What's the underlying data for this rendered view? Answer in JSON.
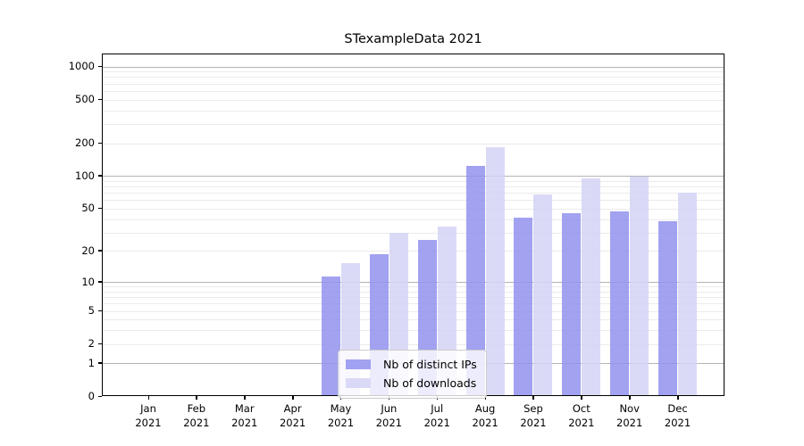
{
  "title": "STexampleData 2021",
  "colors": {
    "ips_bar": "#9292ee",
    "downloads_bar": "#d4d4f6",
    "major_grid": "#b4b4b4",
    "minor_grid": "#ebebeb",
    "axis": "#000000"
  },
  "legend": {
    "items": [
      {
        "label": "Nb of distinct IPs",
        "color": "#9292ee"
      },
      {
        "label": "Nb of downloads",
        "color": "#d4d4f6"
      }
    ]
  },
  "chart_data": {
    "type": "bar",
    "title": "STexampleData 2021",
    "categories": [
      {
        "month": "Jan",
        "year": "2021"
      },
      {
        "month": "Feb",
        "year": "2021"
      },
      {
        "month": "Mar",
        "year": "2021"
      },
      {
        "month": "Apr",
        "year": "2021"
      },
      {
        "month": "May",
        "year": "2021"
      },
      {
        "month": "Jun",
        "year": "2021"
      },
      {
        "month": "Jul",
        "year": "2021"
      },
      {
        "month": "Aug",
        "year": "2021"
      },
      {
        "month": "Sep",
        "year": "2021"
      },
      {
        "month": "Oct",
        "year": "2021"
      },
      {
        "month": "Nov",
        "year": "2021"
      },
      {
        "month": "Dec",
        "year": "2021"
      }
    ],
    "series": [
      {
        "name": "Nb of distinct IPs",
        "color": "#9292ee",
        "values": [
          0,
          0,
          0,
          0,
          11,
          18,
          25,
          120,
          40,
          44,
          46,
          37
        ]
      },
      {
        "name": "Nb of downloads",
        "color": "#d4d4f6",
        "values": [
          0,
          0,
          0,
          0,
          15,
          29,
          33,
          180,
          66,
          92,
          96,
          69
        ]
      }
    ],
    "y_scale": "log1p",
    "y_ticks": [
      0,
      1,
      2,
      5,
      10,
      20,
      50,
      100,
      200,
      500,
      1000
    ],
    "y_max": 1300,
    "xlabel": "",
    "ylabel": "",
    "grid": "horizontal",
    "legend_position": "lower center"
  }
}
